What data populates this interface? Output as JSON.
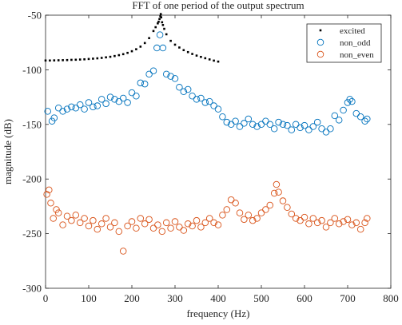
{
  "chart_data": {
    "type": "scatter",
    "title": "FFT of one period of the output spectrum",
    "xlabel": "frequency (Hz)",
    "ylabel": "magnitude (dB)",
    "xlim": [
      0,
      800
    ],
    "ylim": [
      -300,
      -50
    ],
    "xticks": [
      "0",
      "100",
      "200",
      "300",
      "400",
      "500",
      "600",
      "700",
      "800"
    ],
    "yticks": [
      "-50",
      "-100",
      "-150",
      "-200",
      "-250",
      "-300"
    ],
    "legend_position": "top-right",
    "grid": false,
    "series": [
      {
        "name": "excited",
        "marker": "dot",
        "color": "#000000",
        "points": [
          [
            0,
            -91.5
          ],
          [
            10,
            -91.5
          ],
          [
            20,
            -91.4
          ],
          [
            30,
            -91.3
          ],
          [
            40,
            -91.2
          ],
          [
            50,
            -91.1
          ],
          [
            60,
            -90.9
          ],
          [
            70,
            -90.8
          ],
          [
            80,
            -90.6
          ],
          [
            90,
            -90.4
          ],
          [
            100,
            -90.1
          ],
          [
            110,
            -89.8
          ],
          [
            120,
            -89.5
          ],
          [
            130,
            -89.1
          ],
          [
            140,
            -88.6
          ],
          [
            150,
            -88.1
          ],
          [
            160,
            -87.4
          ],
          [
            170,
            -86.6
          ],
          [
            180,
            -85.7
          ],
          [
            190,
            -84.5
          ],
          [
            200,
            -83.0
          ],
          [
            210,
            -81.2
          ],
          [
            220,
            -78.8
          ],
          [
            230,
            -75.5
          ],
          [
            240,
            -71.0
          ],
          [
            250,
            -64.5
          ],
          [
            255,
            -61.0
          ],
          [
            260,
            -57.5
          ],
          [
            262,
            -56.0
          ],
          [
            264,
            -53.5
          ],
          [
            266,
            -51.0
          ],
          [
            267,
            -49.0
          ],
          [
            268,
            -52.0
          ],
          [
            270,
            -56.5
          ],
          [
            272,
            -59.0
          ],
          [
            275,
            -62.5
          ],
          [
            280,
            -67.5
          ],
          [
            290,
            -73.5
          ],
          [
            300,
            -77.0
          ],
          [
            310,
            -79.6
          ],
          [
            320,
            -82.0
          ],
          [
            330,
            -83.8
          ],
          [
            340,
            -85.5
          ],
          [
            350,
            -87.0
          ],
          [
            360,
            -88.2
          ],
          [
            370,
            -89.4
          ],
          [
            380,
            -90.5
          ],
          [
            390,
            -91.6
          ],
          [
            400,
            -92.5
          ]
        ]
      },
      {
        "name": "non_odd",
        "marker": "circle",
        "color": "#0072BD",
        "points": [
          [
            5,
            -138
          ],
          [
            15,
            -147
          ],
          [
            20,
            -144
          ],
          [
            30,
            -135
          ],
          [
            40,
            -138
          ],
          [
            50,
            -136
          ],
          [
            60,
            -134
          ],
          [
            70,
            -135
          ],
          [
            80,
            -132
          ],
          [
            90,
            -136
          ],
          [
            100,
            -130
          ],
          [
            110,
            -134
          ],
          [
            120,
            -133
          ],
          [
            130,
            -127
          ],
          [
            140,
            -131
          ],
          [
            150,
            -125
          ],
          [
            160,
            -127
          ],
          [
            170,
            -129
          ],
          [
            180,
            -126
          ],
          [
            190,
            -130
          ],
          [
            200,
            -121
          ],
          [
            210,
            -124
          ],
          [
            220,
            -112
          ],
          [
            230,
            -113
          ],
          [
            240,
            -104
          ],
          [
            250,
            -101
          ],
          [
            258,
            -80
          ],
          [
            265,
            -68
          ],
          [
            272,
            -80
          ],
          [
            280,
            -104
          ],
          [
            290,
            -106
          ],
          [
            300,
            -108
          ],
          [
            310,
            -116
          ],
          [
            320,
            -120
          ],
          [
            330,
            -118
          ],
          [
            340,
            -124
          ],
          [
            350,
            -127
          ],
          [
            360,
            -126
          ],
          [
            370,
            -130
          ],
          [
            380,
            -129
          ],
          [
            390,
            -133
          ],
          [
            400,
            -136
          ],
          [
            410,
            -143
          ],
          [
            420,
            -148
          ],
          [
            430,
            -150
          ],
          [
            440,
            -147
          ],
          [
            450,
            -152
          ],
          [
            460,
            -149
          ],
          [
            470,
            -145
          ],
          [
            480,
            -150
          ],
          [
            490,
            -152
          ],
          [
            500,
            -150
          ],
          [
            510,
            -147
          ],
          [
            520,
            -150
          ],
          [
            530,
            -154
          ],
          [
            540,
            -148
          ],
          [
            550,
            -150
          ],
          [
            560,
            -151
          ],
          [
            570,
            -155
          ],
          [
            580,
            -150
          ],
          [
            590,
            -153
          ],
          [
            600,
            -151
          ],
          [
            610,
            -155
          ],
          [
            620,
            -152
          ],
          [
            630,
            -148
          ],
          [
            640,
            -154
          ],
          [
            650,
            -157
          ],
          [
            660,
            -154
          ],
          [
            670,
            -142
          ],
          [
            680,
            -146
          ],
          [
            690,
            -137
          ],
          [
            700,
            -130
          ],
          [
            705,
            -127
          ],
          [
            710,
            -129
          ],
          [
            720,
            -140
          ],
          [
            730,
            -143
          ],
          [
            740,
            -147
          ],
          [
            745,
            -145
          ]
        ]
      },
      {
        "name": "non_even",
        "marker": "circle",
        "color": "#D95319",
        "points": [
          [
            3,
            -214
          ],
          [
            8,
            -210
          ],
          [
            12,
            -222
          ],
          [
            18,
            -236
          ],
          [
            25,
            -228
          ],
          [
            30,
            -231
          ],
          [
            40,
            -242
          ],
          [
            50,
            -234
          ],
          [
            60,
            -238
          ],
          [
            70,
            -233
          ],
          [
            80,
            -240
          ],
          [
            90,
            -236
          ],
          [
            100,
            -243
          ],
          [
            110,
            -238
          ],
          [
            120,
            -246
          ],
          [
            130,
            -241
          ],
          [
            140,
            -236
          ],
          [
            150,
            -244
          ],
          [
            160,
            -240
          ],
          [
            170,
            -248
          ],
          [
            180,
            -266
          ],
          [
            190,
            -243
          ],
          [
            200,
            -239
          ],
          [
            210,
            -245
          ],
          [
            220,
            -236
          ],
          [
            230,
            -241
          ],
          [
            240,
            -237
          ],
          [
            250,
            -245
          ],
          [
            260,
            -242
          ],
          [
            270,
            -248
          ],
          [
            280,
            -240
          ],
          [
            290,
            -245
          ],
          [
            300,
            -239
          ],
          [
            310,
            -244
          ],
          [
            320,
            -247
          ],
          [
            330,
            -241
          ],
          [
            340,
            -243
          ],
          [
            350,
            -238
          ],
          [
            360,
            -244
          ],
          [
            370,
            -240
          ],
          [
            380,
            -236
          ],
          [
            390,
            -240
          ],
          [
            400,
            -242
          ],
          [
            410,
            -233
          ],
          [
            420,
            -228
          ],
          [
            430,
            -219
          ],
          [
            440,
            -222
          ],
          [
            450,
            -231
          ],
          [
            460,
            -237
          ],
          [
            470,
            -233
          ],
          [
            480,
            -238
          ],
          [
            490,
            -236
          ],
          [
            500,
            -231
          ],
          [
            510,
            -228
          ],
          [
            520,
            -224
          ],
          [
            530,
            -213
          ],
          [
            535,
            -205
          ],
          [
            540,
            -212
          ],
          [
            550,
            -220
          ],
          [
            560,
            -226
          ],
          [
            570,
            -232
          ],
          [
            580,
            -236
          ],
          [
            590,
            -238
          ],
          [
            600,
            -235
          ],
          [
            610,
            -241
          ],
          [
            620,
            -236
          ],
          [
            630,
            -240
          ],
          [
            640,
            -238
          ],
          [
            650,
            -244
          ],
          [
            660,
            -240
          ],
          [
            670,
            -236
          ],
          [
            680,
            -241
          ],
          [
            690,
            -239
          ],
          [
            700,
            -237
          ],
          [
            710,
            -242
          ],
          [
            720,
            -240
          ],
          [
            730,
            -246
          ],
          [
            740,
            -240
          ],
          [
            745,
            -236
          ]
        ]
      }
    ]
  }
}
